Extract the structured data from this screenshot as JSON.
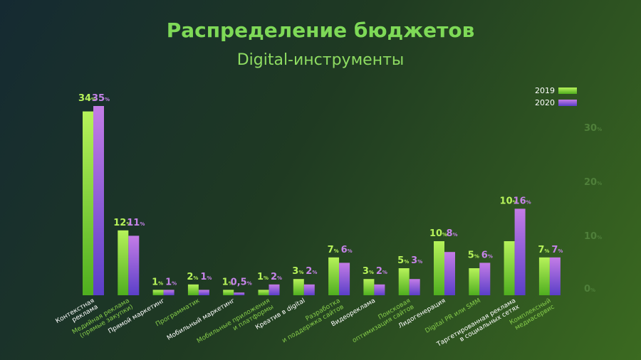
{
  "header": {
    "title": "Распределение бюджетов",
    "subtitle": "Digital-инструменты"
  },
  "colors": {
    "s2019_light": "#b6f25a",
    "s2019_dark": "#4fae1f",
    "s2020_light": "#c47ce6",
    "s2020_dark": "#5a3fc8",
    "label_green": "#86cc4a",
    "label_white": "#ffffff",
    "value_2019": "#b6f25a",
    "value_2020": "#c583e8",
    "tick": "#4f7f3a"
  },
  "chart_data": {
    "type": "bar",
    "title": "Распределение бюджетов",
    "subtitle": "Digital-инструменты",
    "value_suffix": "%",
    "ylim": [
      0,
      35
    ],
    "yticks": [
      0,
      10,
      20,
      30
    ],
    "legend_position": "top-right",
    "categories": [
      [
        "Контекстная",
        "реклама"
      ],
      [
        "Медийная реклама",
        "(прямые закупки)"
      ],
      [
        "Прямой маркетинг"
      ],
      [
        "Программатик"
      ],
      [
        "Мобильный маркетинг"
      ],
      [
        "Мобильные приложения",
        "и платформы"
      ],
      [
        "Креатив в digital"
      ],
      [
        "Разработка",
        "и поддержка сайтов"
      ],
      [
        "Видеореклама"
      ],
      [
        "Поисковая",
        "оптимизация сайтов"
      ],
      [
        "Лидогенерация"
      ],
      [
        "Digital PR или SMM"
      ],
      [
        "Таргетированная реклама",
        "в социальных сетях"
      ],
      [
        "Комплексный",
        "медиасервис"
      ]
    ],
    "category_label_color": [
      "white",
      "green",
      "white",
      "green",
      "white",
      "green",
      "white",
      "green",
      "white",
      "green",
      "white",
      "green",
      "white",
      "green"
    ],
    "series": [
      {
        "name": "2019",
        "values": [
          34,
          12,
          1,
          2,
          1,
          1,
          3,
          7,
          3,
          5,
          10,
          5,
          10,
          7
        ]
      },
      {
        "name": "2020",
        "values": [
          35,
          11,
          1,
          1,
          0.5,
          2,
          2,
          6,
          2,
          3,
          8,
          6,
          16,
          7
        ]
      }
    ],
    "value_labels": {
      "2019": [
        "34",
        "12",
        "1",
        "2",
        "1",
        "1",
        "3",
        "7",
        "3",
        "5",
        "10",
        "5",
        "10",
        "7"
      ],
      "2020": [
        "35",
        "11",
        "1",
        "1",
        "0,5",
        "2",
        "2",
        "6",
        "2",
        "3",
        "8",
        "6",
        "16",
        "7"
      ]
    }
  }
}
